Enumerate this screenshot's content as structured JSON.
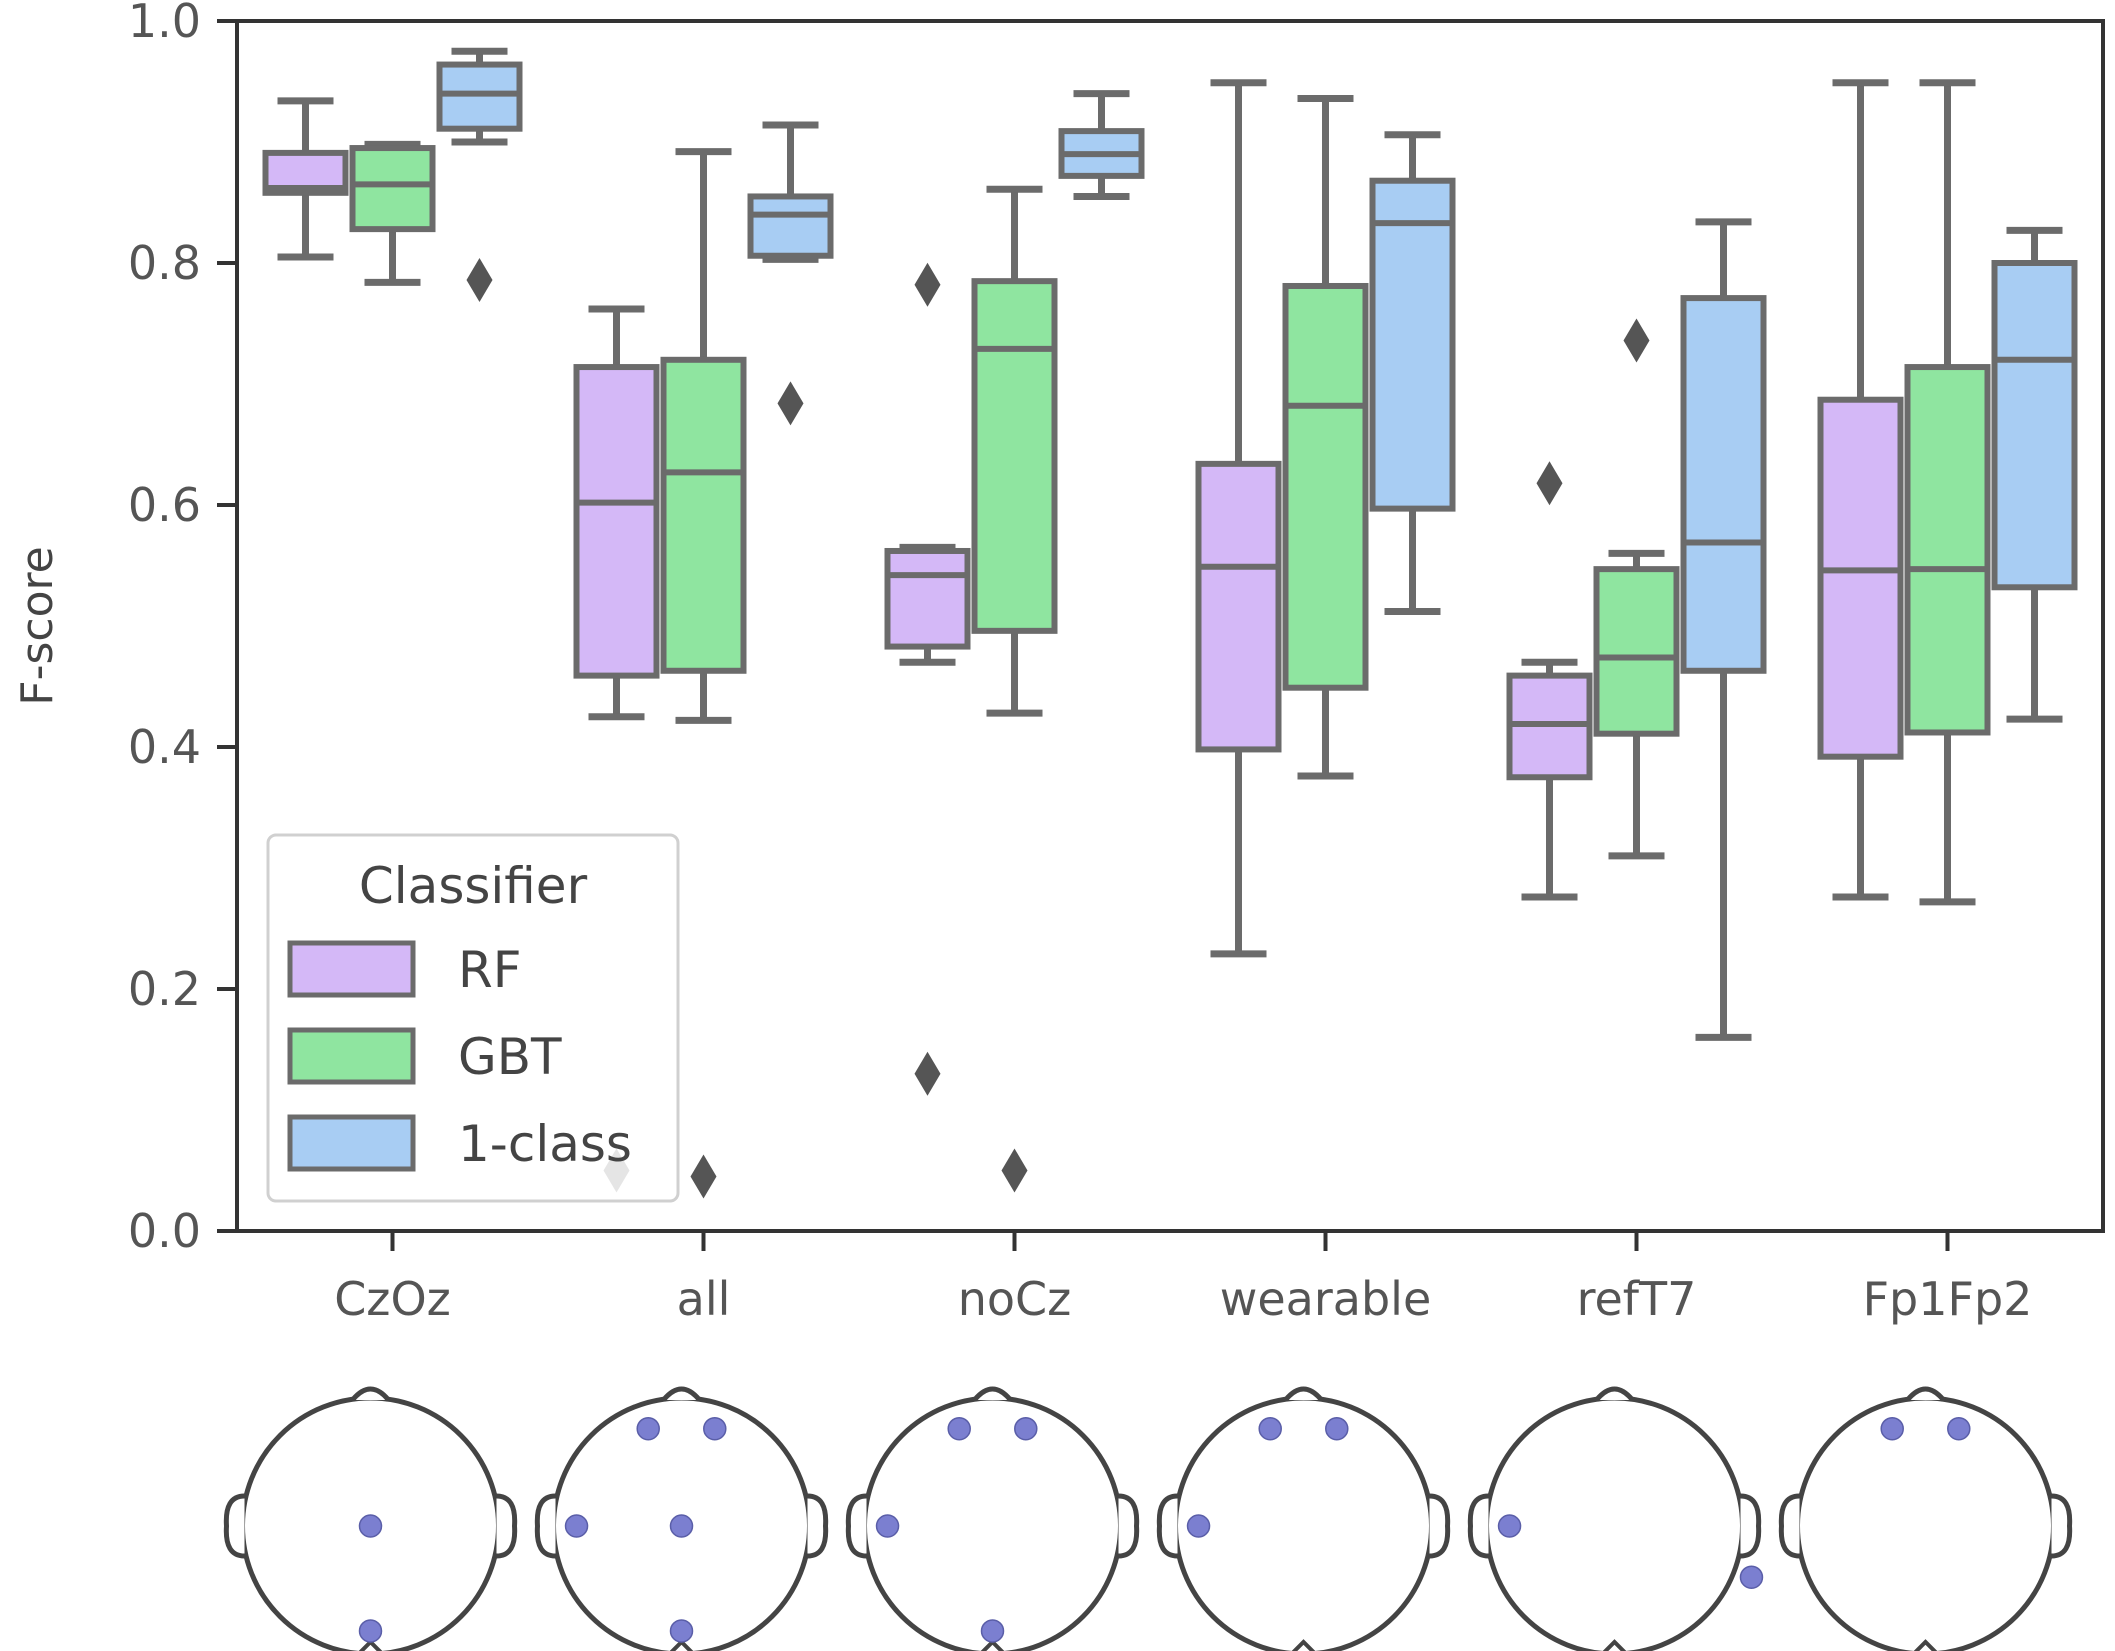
{
  "colors": {
    "RF": "#d4b8f7",
    "GBT": "#8fe5a0",
    "1-class": "#a8cdf3",
    "line": "#6b6b6b",
    "axis": "#333333",
    "electrode": "#7b7fd0",
    "head": "#444444"
  },
  "chart_data": {
    "type": "box",
    "title": "",
    "xlabel": "",
    "ylabel": "F-score",
    "ylim": [
      0.0,
      1.0
    ],
    "yticks": [
      "0.0",
      "0.2",
      "0.4",
      "0.6",
      "0.8",
      "1.0"
    ],
    "categories": [
      "CzOz",
      "all",
      "noCz",
      "wearable",
      "refT7",
      "Fp1Fp2"
    ],
    "legend": {
      "title": "Classifier",
      "position": "lower-left",
      "entries": [
        "RF",
        "GBT",
        "1-class"
      ]
    },
    "series": [
      {
        "name": "RF",
        "boxes": [
          {
            "whislo": 0.805,
            "q1": 0.858,
            "med": 0.862,
            "q3": 0.891,
            "whishi": 0.934,
            "fliers": []
          },
          {
            "whislo": 0.425,
            "q1": 0.459,
            "med": 0.602,
            "q3": 0.714,
            "whishi": 0.762,
            "fliers": [
              0.05
            ]
          },
          {
            "whislo": 0.47,
            "q1": 0.483,
            "med": 0.542,
            "q3": 0.562,
            "whishi": 0.565,
            "fliers": [
              0.782,
              0.13
            ]
          },
          {
            "whislo": 0.229,
            "q1": 0.398,
            "med": 0.549,
            "q3": 0.634,
            "whishi": 0.949,
            "fliers": []
          },
          {
            "whislo": 0.276,
            "q1": 0.375,
            "med": 0.419,
            "q3": 0.459,
            "whishi": 0.47,
            "fliers": [
              0.618
            ]
          },
          {
            "whislo": 0.276,
            "q1": 0.392,
            "med": 0.546,
            "q3": 0.687,
            "whishi": 0.949,
            "fliers": []
          }
        ]
      },
      {
        "name": "GBT",
        "boxes": [
          {
            "whislo": 0.784,
            "q1": 0.828,
            "med": 0.865,
            "q3": 0.895,
            "whishi": 0.898,
            "fliers": []
          },
          {
            "whislo": 0.422,
            "q1": 0.463,
            "med": 0.627,
            "q3": 0.72,
            "whishi": 0.892,
            "fliers": [
              0.045
            ]
          },
          {
            "whislo": 0.428,
            "q1": 0.496,
            "med": 0.729,
            "q3": 0.785,
            "whishi": 0.861,
            "fliers": [
              0.05
            ]
          },
          {
            "whislo": 0.376,
            "q1": 0.449,
            "med": 0.682,
            "q3": 0.781,
            "whishi": 0.936,
            "fliers": []
          },
          {
            "whislo": 0.31,
            "q1": 0.411,
            "med": 0.474,
            "q3": 0.547,
            "whishi": 0.56,
            "fliers": [
              0.736
            ]
          },
          {
            "whislo": 0.272,
            "q1": 0.412,
            "med": 0.547,
            "q3": 0.714,
            "whishi": 0.949,
            "fliers": []
          }
        ]
      },
      {
        "name": "1-class",
        "boxes": [
          {
            "whislo": 0.9,
            "q1": 0.911,
            "med": 0.94,
            "q3": 0.964,
            "whishi": 0.975,
            "fliers": [
              0.786
            ]
          },
          {
            "whislo": 0.803,
            "q1": 0.806,
            "med": 0.84,
            "q3": 0.855,
            "whishi": 0.914,
            "fliers": [
              0.684
            ]
          },
          {
            "whislo": 0.855,
            "q1": 0.872,
            "med": 0.89,
            "q3": 0.909,
            "whishi": 0.94,
            "fliers": []
          },
          {
            "whislo": 0.512,
            "q1": 0.597,
            "med": 0.833,
            "q3": 0.868,
            "whishi": 0.906,
            "fliers": []
          },
          {
            "whislo": 0.16,
            "q1": 0.463,
            "med": 0.569,
            "q3": 0.771,
            "whishi": 0.834,
            "fliers": []
          },
          {
            "whislo": 0.423,
            "q1": 0.532,
            "med": 0.72,
            "q3": 0.8,
            "whishi": 0.827,
            "fliers": []
          }
        ]
      }
    ]
  },
  "electrode_maps": [
    {
      "config": "CzOz",
      "electrodes": [
        "Cz",
        "Oz"
      ]
    },
    {
      "config": "all",
      "electrodes": [
        "Fp1",
        "Fp2",
        "T7",
        "Cz",
        "Oz"
      ]
    },
    {
      "config": "noCz",
      "electrodes": [
        "Fp1",
        "Fp2",
        "T7",
        "Oz"
      ]
    },
    {
      "config": "wearable",
      "electrodes": [
        "Fp1",
        "Fp2",
        "T7"
      ]
    },
    {
      "config": "refT7",
      "electrodes": [
        "T7",
        "ref"
      ]
    },
    {
      "config": "Fp1Fp2",
      "electrodes": [
        "Fp1",
        "Fp2"
      ]
    }
  ]
}
